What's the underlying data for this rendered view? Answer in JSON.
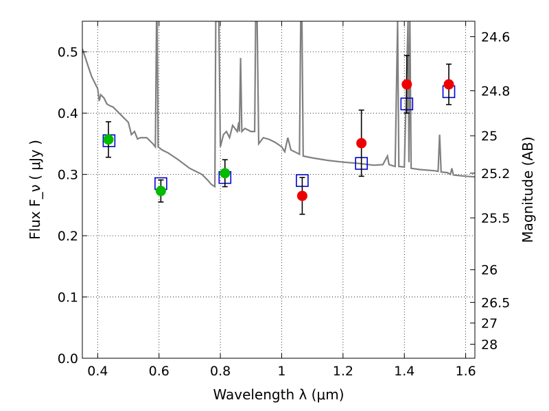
{
  "chart_data": {
    "type": "scatter",
    "xlabel": "Wavelength  λ (μm)",
    "ylabel": "Flux  F_ν  ( μJy )",
    "y2label": "Magnitude (AB)",
    "xlim": [
      0.35,
      1.63
    ],
    "ylim": [
      0.0,
      0.55
    ],
    "grid": true,
    "xticks": [
      0.4,
      0.6,
      0.8,
      1.0,
      1.2,
      1.4,
      1.6
    ],
    "xtick_labels": [
      "0.4",
      "0.6",
      "0.8",
      "1",
      "1.2",
      "1.4",
      "1.6"
    ],
    "yticks": [
      0.0,
      0.1,
      0.2,
      0.3,
      0.4,
      0.5
    ],
    "ytick_labels": [
      "0.0",
      "0.1",
      "0.2",
      "0.3",
      "0.4",
      "0.5"
    ],
    "y2ticks": [
      {
        "label": "24.6",
        "flux": 0.5248
      },
      {
        "label": "24.8",
        "flux": 0.4365
      },
      {
        "label": "25",
        "flux": 0.3631
      },
      {
        "label": "25.2",
        "flux": 0.302
      },
      {
        "label": "25.5",
        "flux": 0.2291
      },
      {
        "label": "26",
        "flux": 0.1445
      },
      {
        "label": "26.5",
        "flux": 0.0912
      },
      {
        "label": "27",
        "flux": 0.0575
      },
      {
        "label": "28",
        "flux": 0.0229
      }
    ],
    "series": [
      {
        "marker": "line",
        "color": "#808080",
        "points": [
          [
            0.35,
            0.505
          ],
          [
            0.36,
            0.49
          ],
          [
            0.37,
            0.475
          ],
          [
            0.38,
            0.46
          ],
          [
            0.39,
            0.45
          ],
          [
            0.4,
            0.44
          ],
          [
            0.405,
            0.42
          ],
          [
            0.41,
            0.43
          ],
          [
            0.42,
            0.425
          ],
          [
            0.43,
            0.415
          ],
          [
            0.44,
            0.412
          ],
          [
            0.45,
            0.41
          ],
          [
            0.46,
            0.405
          ],
          [
            0.47,
            0.4
          ],
          [
            0.48,
            0.395
          ],
          [
            0.5,
            0.385
          ],
          [
            0.51,
            0.365
          ],
          [
            0.52,
            0.37
          ],
          [
            0.53,
            0.358
          ],
          [
            0.54,
            0.36
          ],
          [
            0.56,
            0.36
          ],
          [
            0.58,
            0.35
          ],
          [
            0.588,
            0.345
          ],
          [
            0.592,
            0.55
          ],
          [
            0.594,
            0.55
          ],
          [
            0.597,
            0.345
          ],
          [
            0.61,
            0.34
          ],
          [
            0.63,
            0.335
          ],
          [
            0.66,
            0.325
          ],
          [
            0.7,
            0.31
          ],
          [
            0.74,
            0.3
          ],
          [
            0.76,
            0.29
          ],
          [
            0.77,
            0.284
          ],
          [
            0.782,
            0.28
          ],
          [
            0.785,
            0.55
          ],
          [
            0.795,
            0.55
          ],
          [
            0.8,
            0.345
          ],
          [
            0.81,
            0.365
          ],
          [
            0.82,
            0.37
          ],
          [
            0.83,
            0.36
          ],
          [
            0.84,
            0.38
          ],
          [
            0.855,
            0.37
          ],
          [
            0.86,
            0.385
          ],
          [
            0.862,
            0.37
          ],
          [
            0.866,
            0.49
          ],
          [
            0.87,
            0.37
          ],
          [
            0.88,
            0.375
          ],
          [
            0.9,
            0.37
          ],
          [
            0.912,
            0.37
          ],
          [
            0.915,
            0.55
          ],
          [
            0.92,
            0.55
          ],
          [
            0.925,
            0.35
          ],
          [
            0.94,
            0.36
          ],
          [
            0.96,
            0.357
          ],
          [
            0.98,
            0.352
          ],
          [
            1.0,
            0.345
          ],
          [
            1.01,
            0.337
          ],
          [
            1.02,
            0.36
          ],
          [
            1.03,
            0.34
          ],
          [
            1.05,
            0.335
          ],
          [
            1.058,
            0.333
          ],
          [
            1.062,
            0.55
          ],
          [
            1.066,
            0.55
          ],
          [
            1.07,
            0.33
          ],
          [
            1.1,
            0.327
          ],
          [
            1.15,
            0.323
          ],
          [
            1.2,
            0.32
          ],
          [
            1.25,
            0.318
          ],
          [
            1.3,
            0.315
          ],
          [
            1.33,
            0.316
          ],
          [
            1.345,
            0.33
          ],
          [
            1.35,
            0.316
          ],
          [
            1.37,
            0.313
          ],
          [
            1.378,
            0.55
          ],
          [
            1.382,
            0.313
          ],
          [
            1.4,
            0.312
          ],
          [
            1.412,
            0.55
          ],
          [
            1.415,
            0.32
          ],
          [
            1.418,
            0.55
          ],
          [
            1.422,
            0.31
          ],
          [
            1.45,
            0.308
          ],
          [
            1.5,
            0.306
          ],
          [
            1.51,
            0.305
          ],
          [
            1.515,
            0.365
          ],
          [
            1.52,
            0.304
          ],
          [
            1.54,
            0.303
          ],
          [
            1.55,
            0.3
          ],
          [
            1.555,
            0.31
          ],
          [
            1.56,
            0.299
          ],
          [
            1.6,
            0.297
          ],
          [
            1.63,
            0.296
          ]
        ]
      },
      {
        "marker": "square",
        "color": "#0000cc",
        "points": [
          [
            0.437,
            0.355
          ],
          [
            0.606,
            0.285
          ],
          [
            0.815,
            0.295
          ],
          [
            1.067,
            0.29
          ],
          [
            1.26,
            0.318
          ],
          [
            1.408,
            0.415
          ],
          [
            1.545,
            0.435
          ]
        ]
      },
      {
        "marker": "circle",
        "color": "#00bb00",
        "points": [
          [
            0.435,
            0.357
          ],
          [
            0.606,
            0.273
          ],
          [
            0.815,
            0.302
          ]
        ],
        "yerr": [
          0.029,
          0.018,
          0.022
        ]
      },
      {
        "marker": "circle",
        "color": "#ee0000",
        "points": [
          [
            1.067,
            0.265
          ],
          [
            1.26,
            0.351
          ],
          [
            1.408,
            0.447
          ],
          [
            1.545,
            0.447
          ]
        ],
        "yerr": [
          0.03,
          0.054,
          0.047,
          0.033
        ]
      }
    ]
  }
}
